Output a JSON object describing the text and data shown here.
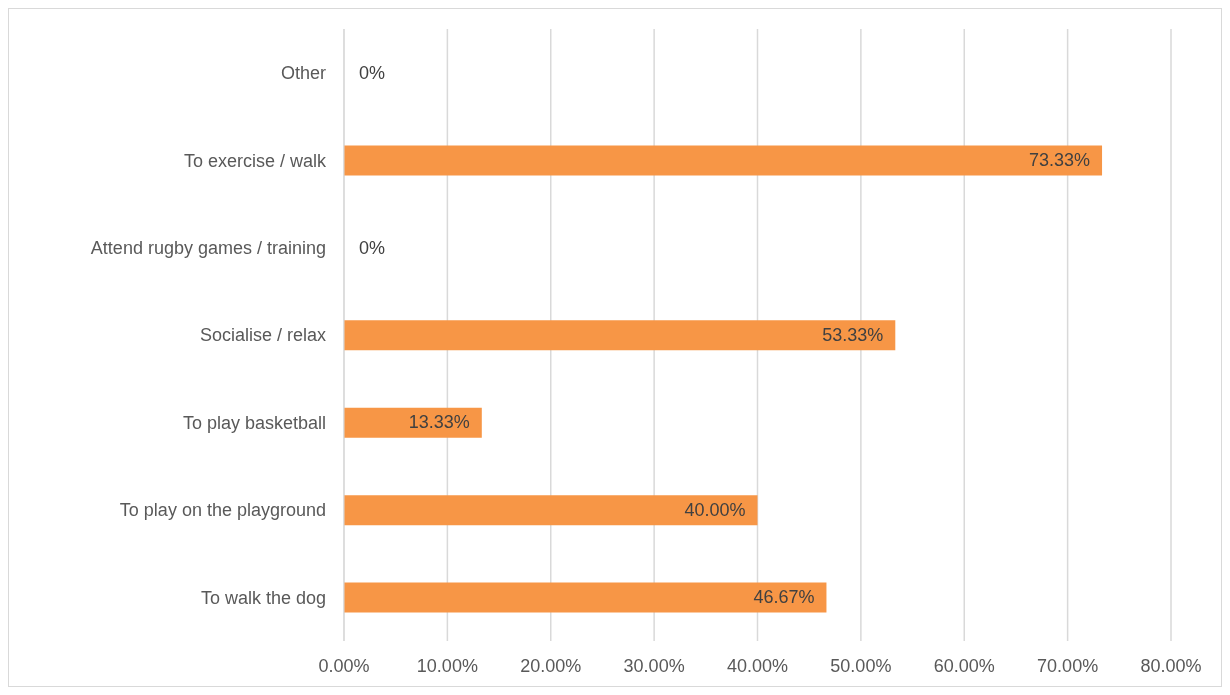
{
  "chart_data": {
    "type": "bar",
    "orientation": "horizontal",
    "categories": [
      "Other",
      "To exercise / walk",
      "Attend rugby games / training",
      "Socialise / relax",
      "To play basketball",
      "To play on the playground",
      "To walk the dog"
    ],
    "values": [
      0,
      73.33,
      0,
      53.33,
      13.33,
      40.0,
      46.67
    ],
    "value_labels": [
      "0%",
      "73.33%",
      "0%",
      "53.33%",
      "13.33%",
      "40.00%",
      "46.67%"
    ],
    "color": "#f79646",
    "xlim": [
      0,
      80
    ],
    "xticks": [
      {
        "value": 0,
        "label": "0.00%"
      },
      {
        "value": 10,
        "label": "10.00%"
      },
      {
        "value": 20,
        "label": "20.00%"
      },
      {
        "value": 30,
        "label": "30.00%"
      },
      {
        "value": 40,
        "label": "40.00%"
      },
      {
        "value": 50,
        "label": "50.00%"
      },
      {
        "value": 60,
        "label": "60.00%"
      },
      {
        "value": 70,
        "label": "70.00%"
      },
      {
        "value": 80,
        "label": "80.00%"
      }
    ],
    "grid": "x",
    "legend": false
  }
}
